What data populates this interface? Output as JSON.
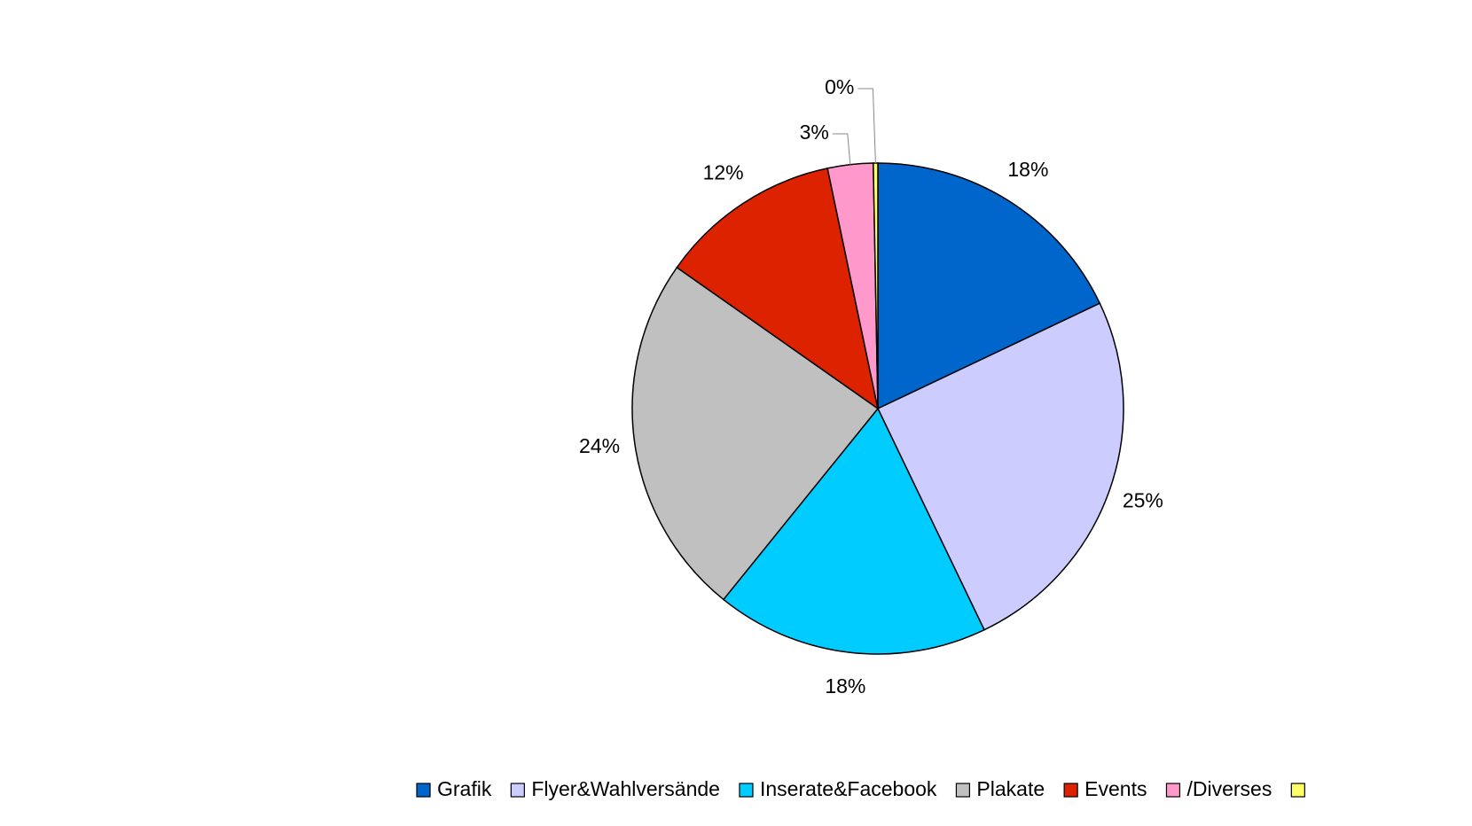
{
  "chart_data": {
    "type": "pie",
    "categories": [
      "Grafik",
      "Flyer&Wahlversände",
      "Inserate&Facebook",
      "Plakate",
      "Events",
      "/Diverses",
      null
    ],
    "values": [
      18,
      25,
      18,
      24,
      12,
      3,
      0.3
    ],
    "value_labels": [
      "18%",
      "25%",
      "18%",
      "24%",
      "12%",
      "3%",
      "0%"
    ],
    "colors": [
      "#0066cc",
      "#ccccff",
      "#00ccff",
      "#c0c0c0",
      "#dd2200",
      "#ff99cc",
      "#ffff66"
    ],
    "legend": "bottom"
  }
}
